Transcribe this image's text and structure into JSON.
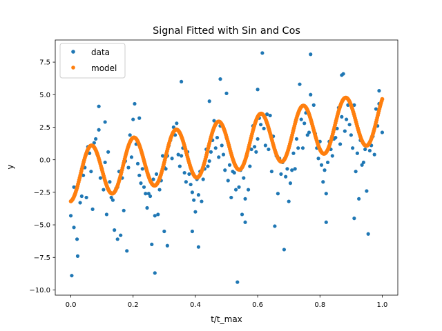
{
  "chart_data": {
    "type": "scatter",
    "title": "Signal Fitted with Sin and Cos",
    "xlabel": "t/t_max",
    "ylabel": "y",
    "xlim": [
      -0.05,
      1.05
    ],
    "ylim": [
      -10.4,
      9.2
    ],
    "xticks": [
      0.0,
      0.2,
      0.4,
      0.6,
      0.8,
      1.0
    ],
    "xtick_labels": [
      "0.0",
      "0.2",
      "0.4",
      "0.6",
      "0.8",
      "1.0"
    ],
    "yticks": [
      -10.0,
      -7.5,
      -5.0,
      -2.5,
      0.0,
      2.5,
      5.0,
      7.5
    ],
    "ytick_labels": [
      "−10.0",
      "−7.5",
      "−5.0",
      "−2.5",
      "0.0",
      "2.5",
      "5.0",
      "7.5"
    ],
    "grid": false,
    "legend_position": "top-left",
    "series": [
      {
        "name": "data",
        "color": "#1f77b4",
        "marker": "circle",
        "points": [
          [
            0.0,
            -4.3
          ],
          [
            0.01,
            -5.2
          ],
          [
            0.01,
            -2.1
          ],
          [
            0.02,
            -6.1
          ],
          [
            0.03,
            -3.3
          ],
          [
            0.04,
            -1.2
          ],
          [
            0.05,
            -2.9
          ],
          [
            0.06,
            0.5
          ],
          [
            0.07,
            -3.8
          ],
          [
            0.08,
            1.6
          ],
          [
            0.09,
            2.3
          ],
          [
            0.1,
            -0.7
          ],
          [
            0.11,
            -0.2
          ],
          [
            0.12,
            0.6
          ],
          [
            0.13,
            -2.9
          ],
          [
            0.14,
            -5.4
          ],
          [
            0.15,
            -2.1
          ],
          [
            0.16,
            -5.8
          ],
          [
            0.17,
            -3.9
          ],
          [
            0.18,
            0.7
          ],
          [
            0.19,
            1.9
          ],
          [
            0.2,
            3.1
          ],
          [
            0.21,
            1.2
          ],
          [
            0.22,
            -1.2
          ],
          [
            0.23,
            -0.7
          ],
          [
            0.24,
            -2.6
          ],
          [
            0.25,
            -2.6
          ],
          [
            0.26,
            -6.5
          ],
          [
            0.27,
            -4.3
          ],
          [
            0.28,
            -4.2
          ],
          [
            0.29,
            -1.6
          ],
          [
            0.3,
            -0.6
          ],
          [
            0.31,
            0.3
          ],
          [
            0.32,
            1.5
          ],
          [
            0.33,
            2.5
          ],
          [
            0.34,
            2.8
          ],
          [
            0.35,
            -0.5
          ],
          [
            0.36,
            0.9
          ],
          [
            0.37,
            -1.7
          ],
          [
            0.38,
            -1.1
          ],
          [
            0.39,
            -2.5
          ],
          [
            0.4,
            -4.0
          ],
          [
            0.41,
            -2.7
          ],
          [
            0.42,
            -3.2
          ],
          [
            0.43,
            -0.7
          ],
          [
            0.44,
            -0.5
          ],
          [
            0.45,
            0.6
          ],
          [
            0.46,
            3.0
          ],
          [
            0.47,
            1.7
          ],
          [
            0.48,
            2.6
          ],
          [
            0.49,
            0.4
          ],
          [
            0.5,
            1.7
          ],
          [
            0.51,
            -0.4
          ],
          [
            0.52,
            -0.9
          ],
          [
            0.53,
            -2.3
          ],
          [
            0.54,
            -2.1
          ],
          [
            0.55,
            -4.2
          ],
          [
            0.56,
            -3.0
          ],
          [
            0.57,
            -2.3
          ],
          [
            0.58,
            0.8
          ],
          [
            0.59,
            1.0
          ],
          [
            0.6,
            1.6
          ],
          [
            0.61,
            2.7
          ],
          [
            0.62,
            2.4
          ],
          [
            0.63,
            3.5
          ],
          [
            0.64,
            3.4
          ],
          [
            0.65,
            1.8
          ],
          [
            0.66,
            0.3
          ],
          [
            0.67,
            0.1
          ],
          [
            0.68,
            -0.2
          ],
          [
            0.69,
            -1.3
          ],
          [
            0.7,
            -3.2
          ],
          [
            0.71,
            -0.8
          ],
          [
            0.72,
            -0.7
          ],
          [
            0.73,
            0.9
          ],
          [
            0.74,
            3.1
          ],
          [
            0.75,
            2.8
          ],
          [
            0.76,
            1.9
          ],
          [
            0.77,
            5.0
          ],
          [
            0.78,
            4.2
          ],
          [
            0.79,
            0.9
          ],
          [
            0.8,
            1.4
          ],
          [
            0.81,
            -1.7
          ],
          [
            0.82,
            -2.6
          ],
          [
            0.83,
            1.4
          ],
          [
            0.84,
            0.3
          ],
          [
            0.85,
            1.7
          ],
          [
            0.86,
            4.0
          ],
          [
            0.87,
            3.3
          ],
          [
            0.88,
            2.2
          ],
          [
            0.89,
            4.2
          ],
          [
            0.9,
            1.9
          ],
          [
            0.91,
            4.2
          ],
          [
            0.92,
            0.5
          ],
          [
            0.93,
            1.5
          ],
          [
            0.94,
            -0.2
          ],
          [
            0.95,
            -2.4
          ],
          [
            0.96,
            0.7
          ],
          [
            0.97,
            1.8
          ],
          [
            0.98,
            3.9
          ],
          [
            0.99,
            4.3
          ],
          [
            1.0,
            2.1
          ],
          [
            0.003,
            -8.9
          ],
          [
            0.022,
            -7.4
          ],
          [
            0.09,
            4.1
          ],
          [
            0.11,
            2.9
          ],
          [
            0.15,
            -6.1
          ],
          [
            0.18,
            -7.0
          ],
          [
            0.205,
            4.3
          ],
          [
            0.22,
            3.2
          ],
          [
            0.27,
            -8.7
          ],
          [
            0.3,
            -5.5
          ],
          [
            0.31,
            -6.6
          ],
          [
            0.355,
            6.0
          ],
          [
            0.39,
            -5.5
          ],
          [
            0.41,
            -6.7
          ],
          [
            0.445,
            4.5
          ],
          [
            0.48,
            6.2
          ],
          [
            0.5,
            5.1
          ],
          [
            0.535,
            -9.4
          ],
          [
            0.56,
            -4.8
          ],
          [
            0.6,
            5.4
          ],
          [
            0.615,
            8.2
          ],
          [
            0.655,
            -5.1
          ],
          [
            0.685,
            -6.9
          ],
          [
            0.735,
            5.8
          ],
          [
            0.77,
            8.1
          ],
          [
            0.82,
            -4.8
          ],
          [
            0.87,
            6.5
          ],
          [
            0.875,
            6.6
          ],
          [
            0.91,
            -4.5
          ],
          [
            0.925,
            -3.0
          ],
          [
            0.955,
            -5.7
          ],
          [
            0.99,
            5.3
          ],
          [
            0.035,
            -2.8
          ],
          [
            0.045,
            -0.6
          ],
          [
            0.055,
            1.0
          ],
          [
            0.065,
            -0.9
          ],
          [
            0.075,
            1.3
          ],
          [
            0.085,
            0.4
          ],
          [
            0.095,
            -1.4
          ],
          [
            0.105,
            -2.3
          ],
          [
            0.115,
            -4.2
          ],
          [
            0.125,
            -1.7
          ],
          [
            0.135,
            -3.1
          ],
          [
            0.145,
            -2.2
          ],
          [
            0.155,
            -0.9
          ],
          [
            0.165,
            -1.4
          ],
          [
            0.175,
            -0.1
          ],
          [
            0.185,
            -0.6
          ],
          [
            0.195,
            0.2
          ],
          [
            0.215,
            -0.3
          ],
          [
            0.225,
            -1.8
          ],
          [
            0.235,
            -2.1
          ],
          [
            0.245,
            -3.7
          ],
          [
            0.255,
            -2.8
          ],
          [
            0.265,
            -1.5
          ],
          [
            0.275,
            -1.1
          ],
          [
            0.285,
            -2.3
          ],
          [
            0.295,
            0.3
          ],
          [
            0.305,
            -0.7
          ],
          [
            0.315,
            1.1
          ],
          [
            0.325,
            0.1
          ],
          [
            0.335,
            1.9
          ],
          [
            0.345,
            0.4
          ],
          [
            0.355,
            0.3
          ],
          [
            0.365,
            -1.0
          ],
          [
            0.375,
            0.6
          ],
          [
            0.385,
            -1.9
          ],
          [
            0.395,
            -3.1
          ],
          [
            0.405,
            -1.5
          ],
          [
            0.415,
            -0.9
          ],
          [
            0.425,
            -1.5
          ],
          [
            0.435,
            0.8
          ],
          [
            0.445,
            -0.1
          ],
          [
            0.455,
            1.5
          ],
          [
            0.465,
            0.9
          ],
          [
            0.475,
            0.2
          ],
          [
            0.485,
            1.1
          ],
          [
            0.495,
            -0.8
          ],
          [
            0.505,
            -1.6
          ],
          [
            0.515,
            -2.9
          ],
          [
            0.525,
            -1.0
          ],
          [
            0.545,
            -0.8
          ],
          [
            0.555,
            -1.4
          ],
          [
            0.565,
            0.3
          ],
          [
            0.575,
            -0.5
          ],
          [
            0.585,
            2.6
          ],
          [
            0.595,
            0.6
          ],
          [
            0.605,
            3.2
          ],
          [
            0.625,
            1.1
          ],
          [
            0.635,
            0.8
          ],
          [
            0.645,
            -0.9
          ],
          [
            0.665,
            -2.6
          ],
          [
            0.675,
            -1.1
          ],
          [
            0.695,
            -0.7
          ],
          [
            0.705,
            -1.8
          ],
          [
            0.715,
            0.5
          ],
          [
            0.725,
            1.6
          ],
          [
            0.745,
            0.9
          ],
          [
            0.755,
            3.6
          ],
          [
            0.765,
            2.1
          ],
          [
            0.785,
            2.0
          ],
          [
            0.795,
            0.1
          ],
          [
            0.805,
            -0.4
          ],
          [
            0.815,
            -0.8
          ],
          [
            0.825,
            -0.2
          ],
          [
            0.835,
            0.8
          ],
          [
            0.845,
            1.6
          ],
          [
            0.855,
            2.4
          ],
          [
            0.865,
            1.2
          ],
          [
            0.885,
            3.1
          ],
          [
            0.895,
            2.7
          ],
          [
            0.905,
            0.9
          ],
          [
            0.915,
            -0.9
          ],
          [
            0.935,
            -0.4
          ],
          [
            0.945,
            0.8
          ],
          [
            0.965,
            1.1
          ],
          [
            0.975,
            0.4
          ],
          [
            0.985,
            2.6
          ]
        ]
      },
      {
        "name": "model",
        "color": "#ff7f0e",
        "marker": "circle",
        "trend": {
          "a": -1.2,
          "b": 4.5,
          "amplitude": 2.0,
          "period": 0.136,
          "phase": -1.47
        }
      }
    ]
  },
  "colors": {
    "data": "#1f77b4",
    "model": "#ff7f0e",
    "axes": "#000000"
  }
}
